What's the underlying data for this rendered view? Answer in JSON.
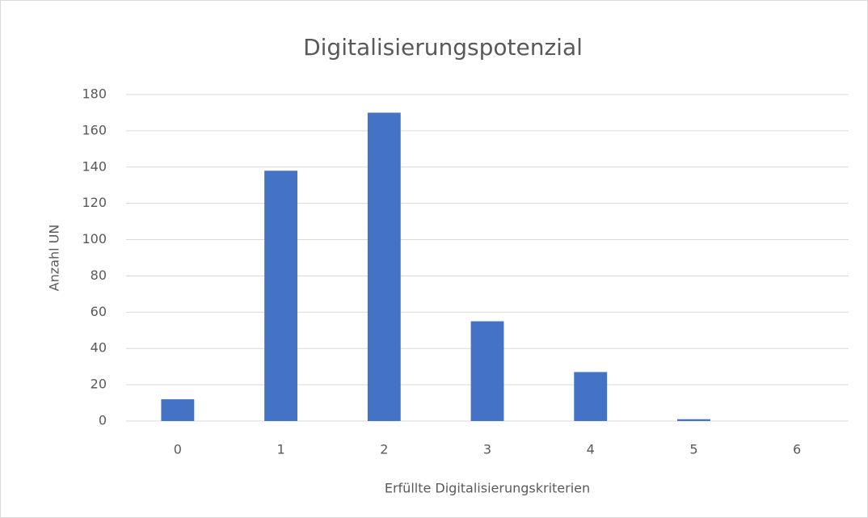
{
  "chart_data": {
    "type": "bar",
    "title": "Digitalisierungspotenzial",
    "x_label": "Erfüllte Digitalisierungskriterien",
    "y_label": "Anzahl UN",
    "categories": [
      "0",
      "1",
      "2",
      "3",
      "4",
      "5",
      "6"
    ],
    "values": [
      12,
      138,
      170,
      55,
      27,
      1,
      0
    ],
    "color": "#4472c4",
    "ylim": [
      0,
      180
    ],
    "yticks": [
      0,
      20,
      40,
      60,
      80,
      100,
      120,
      140,
      160,
      180
    ],
    "grid": true
  }
}
